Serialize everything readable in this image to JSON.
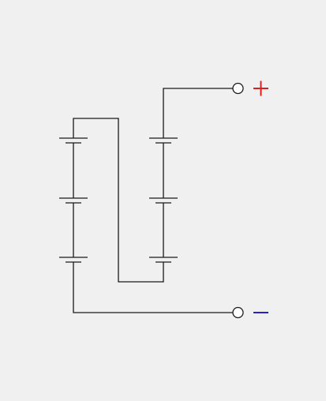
{
  "diagram": {
    "type": "circuit",
    "components": {
      "battery_cells": 6,
      "terminals": 2
    },
    "terminals": [
      {
        "id": "positive",
        "polarity_symbol": "+",
        "color": "#dd1f1f"
      },
      {
        "id": "negative",
        "polarity_symbol": "-",
        "color": "#2323cc"
      }
    ]
  },
  "colors": {
    "background": "#f0f0f0",
    "wire": "#1a1a1a"
  }
}
